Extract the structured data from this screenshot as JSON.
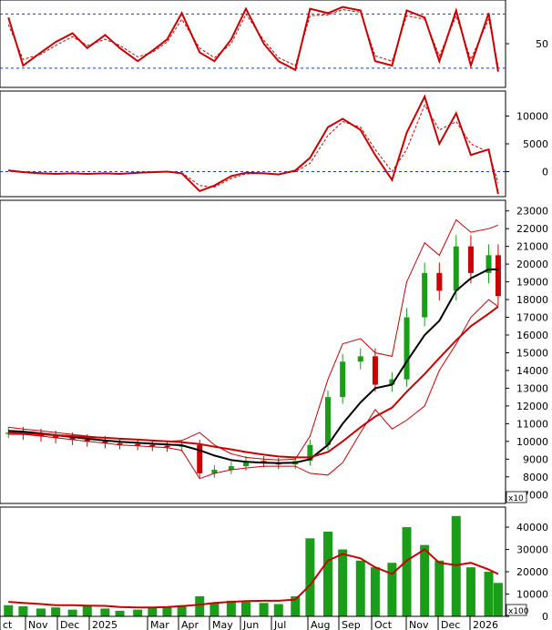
{
  "chart_data": [
    {
      "panel": "oscillator",
      "type": "line",
      "y_ticks": [
        50
      ],
      "reference_lines": [
        84,
        22
      ],
      "x": [
        "2024-10-01",
        "2024-10-15",
        "2024-11-01",
        "2024-11-15",
        "2024-12-01",
        "2024-12-15",
        "2025-01-01",
        "2025-01-15",
        "2025-02-01",
        "2025-02-15",
        "2025-03-01",
        "2025-03-15",
        "2025-04-01",
        "2025-04-15",
        "2025-05-01",
        "2025-05-15",
        "2025-06-01",
        "2025-06-15",
        "2025-07-01",
        "2025-07-15",
        "2025-08-01",
        "2025-08-15",
        "2025-09-01",
        "2025-09-15",
        "2025-10-01",
        "2025-10-15",
        "2025-11-01",
        "2025-11-15",
        "2025-12-01",
        "2025-12-15",
        "2026-01-01",
        "2026-01-10"
      ],
      "series": [
        {
          "color": "#cc0000",
          "style": "solid",
          "values": [
            80,
            25,
            40,
            52,
            62,
            45,
            60,
            45,
            30,
            42,
            55,
            85,
            40,
            30,
            55,
            90,
            50,
            30,
            20,
            90,
            85,
            92,
            88,
            30,
            25,
            88,
            80,
            30,
            88,
            25,
            85,
            18
          ]
        },
        {
          "color": "#cc0000",
          "style": "dashed",
          "values": [
            72,
            32,
            38,
            48,
            58,
            48,
            55,
            48,
            35,
            40,
            52,
            78,
            45,
            34,
            50,
            84,
            54,
            34,
            25,
            82,
            83,
            89,
            86,
            36,
            30,
            82,
            78,
            36,
            82,
            32,
            78,
            24
          ]
        }
      ],
      "ylim": [
        0,
        100
      ]
    },
    {
      "panel": "momentum",
      "type": "line",
      "y_ticks": [
        10000,
        5000,
        0
      ],
      "reference_lines": [
        0
      ],
      "x": [
        "2024-10-01",
        "2024-10-15",
        "2024-11-01",
        "2024-11-15",
        "2024-12-01",
        "2024-12-15",
        "2025-01-01",
        "2025-01-15",
        "2025-02-01",
        "2025-02-15",
        "2025-03-01",
        "2025-03-15",
        "2025-04-01",
        "2025-04-15",
        "2025-05-01",
        "2025-05-15",
        "2025-06-01",
        "2025-06-15",
        "2025-07-01",
        "2025-07-15",
        "2025-08-01",
        "2025-08-15",
        "2025-09-01",
        "2025-09-15",
        "2025-10-01",
        "2025-10-15",
        "2025-11-01",
        "2025-11-15",
        "2025-12-01",
        "2025-12-15",
        "2026-01-01",
        "2026-01-10"
      ],
      "series": [
        {
          "color": "#cc0000",
          "style": "solid",
          "values": [
            200,
            -100,
            -300,
            -400,
            -300,
            -400,
            -300,
            -400,
            -200,
            -100,
            0,
            -300,
            -3500,
            -2500,
            -800,
            -200,
            -300,
            -500,
            200,
            2500,
            8000,
            9500,
            7500,
            3000,
            -1500,
            7000,
            13500,
            5000,
            10500,
            3000,
            4000,
            -4000
          ]
        },
        {
          "color": "#cc0000",
          "style": "dashed",
          "values": [
            300,
            0,
            -200,
            -300,
            -300,
            -350,
            -300,
            -350,
            -250,
            -150,
            -50,
            -200,
            -2500,
            -2800,
            -1200,
            -400,
            -300,
            -400,
            0,
            1500,
            6500,
            9000,
            8000,
            4000,
            0,
            4000,
            12000,
            7500,
            9000,
            5000,
            3500,
            -2000
          ]
        }
      ],
      "ylim": [
        -4500,
        14500
      ]
    },
    {
      "panel": "price",
      "type": "candlestick",
      "y_unit_label": "x10",
      "y_ticks": [
        23000,
        22000,
        21000,
        20000,
        19000,
        18000,
        17000,
        16000,
        15000,
        14000,
        13000,
        12000,
        11000,
        10000,
        9000,
        8000,
        7000
      ],
      "x": [
        "2024-10-01",
        "2024-10-15",
        "2024-11-01",
        "2024-11-15",
        "2024-12-01",
        "2024-12-15",
        "2025-01-01",
        "2025-01-15",
        "2025-02-01",
        "2025-02-15",
        "2025-03-01",
        "2025-03-15",
        "2025-04-01",
        "2025-04-15",
        "2025-05-01",
        "2025-05-15",
        "2025-06-01",
        "2025-06-15",
        "2025-07-01",
        "2025-07-15",
        "2025-08-01",
        "2025-08-15",
        "2025-09-01",
        "2025-09-15",
        "2025-10-01",
        "2025-10-15",
        "2025-11-01",
        "2025-11-15",
        "2025-12-01",
        "2025-12-15",
        "2026-01-01",
        "2026-01-10"
      ],
      "close": [
        10500,
        10400,
        10300,
        10200,
        10100,
        10000,
        9900,
        9850,
        9800,
        9750,
        9700,
        9800,
        8200,
        8400,
        8600,
        8900,
        8800,
        8700,
        8900,
        9800,
        12500,
        14500,
        14800,
        13200,
        13500,
        17000,
        19500,
        18500,
        21000,
        19500,
        20500,
        18200
      ],
      "overlays": [
        {
          "color": "#000000",
          "style": "solid",
          "values": [
            10600,
            10550,
            10450,
            10350,
            10250,
            10150,
            10050,
            9980,
            9920,
            9870,
            9820,
            9780,
            9500,
            9200,
            8950,
            8850,
            8800,
            8780,
            8800,
            9000,
            9800,
            11000,
            12200,
            13000,
            13200,
            14500,
            16000,
            16800,
            18500,
            19200,
            19700,
            19700
          ]
        },
        {
          "color": "#cc0000",
          "style": "solid",
          "values": [
            10500,
            10450,
            10400,
            10350,
            10300,
            10250,
            10200,
            10150,
            10100,
            10050,
            10000,
            9950,
            9850,
            9700,
            9550,
            9400,
            9250,
            9150,
            9100,
            9100,
            9400,
            10000,
            10800,
            11400,
            11900,
            12800,
            13800,
            14700,
            15700,
            16500,
            17200,
            17600
          ]
        },
        {
          "color": "#cc0000",
          "style": "thin",
          "values": [
            10800,
            10700,
            10600,
            10500,
            10400,
            10300,
            10200,
            10150,
            10100,
            10050,
            10000,
            10050,
            10500,
            9800,
            9300,
            9100,
            9000,
            8950,
            9000,
            10300,
            13500,
            15500,
            15800,
            15000,
            14800,
            19000,
            21200,
            20500,
            22500,
            21800,
            22000,
            22200
          ]
        },
        {
          "color": "#cc0000",
          "style": "thin",
          "values": [
            10400,
            10400,
            10300,
            10200,
            10100,
            10000,
            9900,
            9800,
            9750,
            9700,
            9650,
            9500,
            7900,
            8200,
            8400,
            8500,
            8600,
            8600,
            8600,
            8200,
            8100,
            8800,
            10500,
            11800,
            10700,
            11200,
            12000,
            14000,
            15500,
            17000,
            18000,
            17600
          ]
        }
      ],
      "ylim": [
        6500,
        23600
      ]
    },
    {
      "panel": "volume",
      "type": "bar",
      "y_unit_label": "x100",
      "y_ticks": [
        40000,
        30000,
        20000,
        10000,
        0
      ],
      "x": [
        "2024-10-01",
        "2024-10-15",
        "2024-11-01",
        "2024-11-15",
        "2024-12-01",
        "2024-12-15",
        "2025-01-01",
        "2025-01-15",
        "2025-02-01",
        "2025-02-15",
        "2025-03-01",
        "2025-03-15",
        "2025-04-01",
        "2025-04-15",
        "2025-05-01",
        "2025-05-15",
        "2025-06-01",
        "2025-06-15",
        "2025-07-01",
        "2025-07-15",
        "2025-08-01",
        "2025-08-15",
        "2025-09-01",
        "2025-09-15",
        "2025-10-01",
        "2025-10-15",
        "2025-11-01",
        "2025-11-15",
        "2025-12-01",
        "2025-12-15",
        "2026-01-01",
        "2026-01-10"
      ],
      "values": [
        5000,
        4500,
        3500,
        4000,
        3000,
        5000,
        3500,
        2500,
        3000,
        4000,
        4500,
        5000,
        9000,
        6000,
        7000,
        6500,
        6000,
        5500,
        9000,
        35000,
        38000,
        30000,
        25000,
        22000,
        24000,
        40000,
        32000,
        25000,
        45000,
        22000,
        20000,
        15000
      ],
      "overlays": [
        {
          "color": "#cc0000",
          "style": "solid",
          "values": [
            6500,
            6000,
            5500,
            5000,
            5000,
            4800,
            4700,
            4200,
            4000,
            4000,
            4200,
            4600,
            5200,
            6000,
            6500,
            6800,
            7000,
            7000,
            7500,
            14000,
            25000,
            28000,
            26000,
            22000,
            19000,
            25000,
            30000,
            24000,
            23000,
            24000,
            21000,
            19000
          ]
        }
      ],
      "ylim": [
        0,
        49000
      ]
    }
  ],
  "x_axis": {
    "labels": [
      "ct",
      "Nov",
      "Dec",
      "2025",
      "Mar",
      "Apr",
      "May",
      "Jun",
      "Jul",
      "Aug",
      "Sep",
      "Oct",
      "Nov",
      "Dec",
      "2026"
    ]
  }
}
